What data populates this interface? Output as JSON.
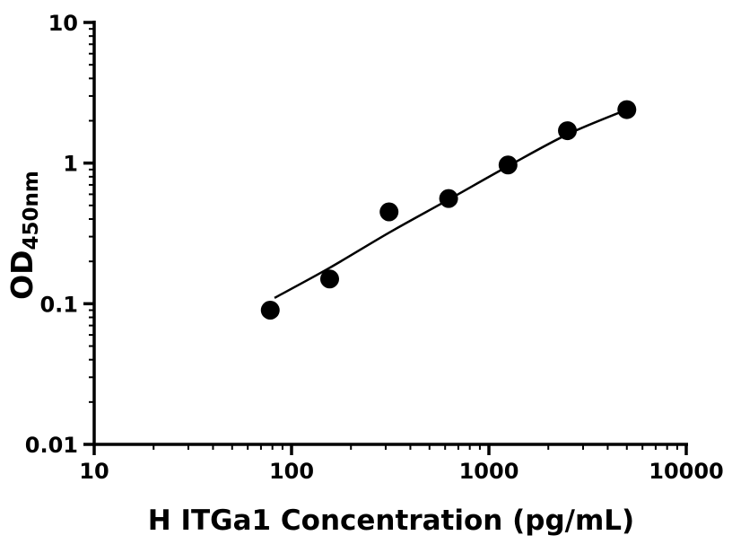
{
  "chart_data": {
    "type": "scatter",
    "title": "",
    "xlabel": "H ITGa1 Concentration (pg/mL)",
    "ylabel_main": "OD",
    "ylabel_sub": "450nm",
    "x_scale": "log",
    "y_scale": "log",
    "xlim": [
      10,
      10000
    ],
    "ylim": [
      0.01,
      10
    ],
    "x_ticks": [
      10,
      100,
      1000,
      10000
    ],
    "x_tick_labels": [
      "10",
      "100",
      "1000",
      "10000"
    ],
    "y_ticks": [
      0.01,
      0.1,
      1,
      10
    ],
    "y_tick_labels": [
      "0.01",
      "0.1",
      "1",
      "10"
    ],
    "grid": false,
    "legend": false,
    "axis_color": "#000000",
    "marker_color": "#000000",
    "line_color": "#000000",
    "background_color": "#ffffff",
    "points": [
      {
        "x": 78,
        "y": 0.09
      },
      {
        "x": 156,
        "y": 0.15
      },
      {
        "x": 312,
        "y": 0.45
      },
      {
        "x": 625,
        "y": 0.56
      },
      {
        "x": 1250,
        "y": 0.97
      },
      {
        "x": 2500,
        "y": 1.7
      },
      {
        "x": 5000,
        "y": 2.4
      }
    ],
    "fit_curve": [
      {
        "x": 82,
        "y": 0.11
      },
      {
        "x": 156,
        "y": 0.18
      },
      {
        "x": 312,
        "y": 0.32
      },
      {
        "x": 625,
        "y": 0.55
      },
      {
        "x": 1250,
        "y": 0.95
      },
      {
        "x": 2500,
        "y": 1.6
      },
      {
        "x": 5000,
        "y": 2.4
      }
    ]
  }
}
